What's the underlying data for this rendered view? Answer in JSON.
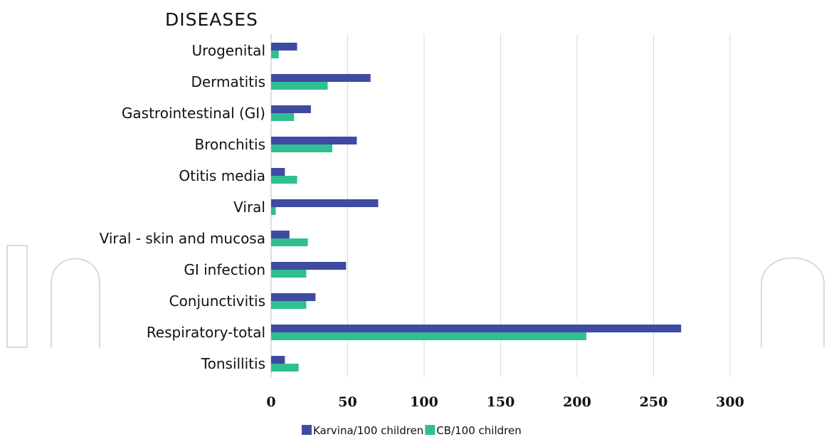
{
  "chart_data": {
    "type": "bar",
    "orientation": "horizontal",
    "title": "DISEASES",
    "xlabel": "",
    "ylabel": "",
    "categories": [
      "Urogenital",
      "Dermatitis",
      "Gastrointestinal (GI)",
      "Bronchitis",
      "Otitis media",
      "Viral",
      "Viral - skin and mucosa",
      "GI infection",
      "Conjunctivitis",
      "Respiratory-total",
      "Tonsillitis"
    ],
    "series": [
      {
        "name": "Karvina/100 children",
        "color": "#3f4aa3",
        "values": [
          17,
          65,
          26,
          56,
          9,
          70,
          12,
          49,
          29,
          268,
          9
        ]
      },
      {
        "name": "CB/100 children",
        "color": "#2fbf91",
        "values": [
          5,
          37,
          15,
          40,
          17,
          3,
          24,
          23,
          23,
          206,
          18
        ]
      }
    ],
    "xlim": [
      0,
      300
    ],
    "xticks": [
      0,
      50,
      100,
      150,
      200,
      250,
      300
    ],
    "grid": true,
    "legend": "bottom"
  },
  "colors": {
    "grid": "#d9d9d9",
    "axis": "#bfbfbf"
  }
}
